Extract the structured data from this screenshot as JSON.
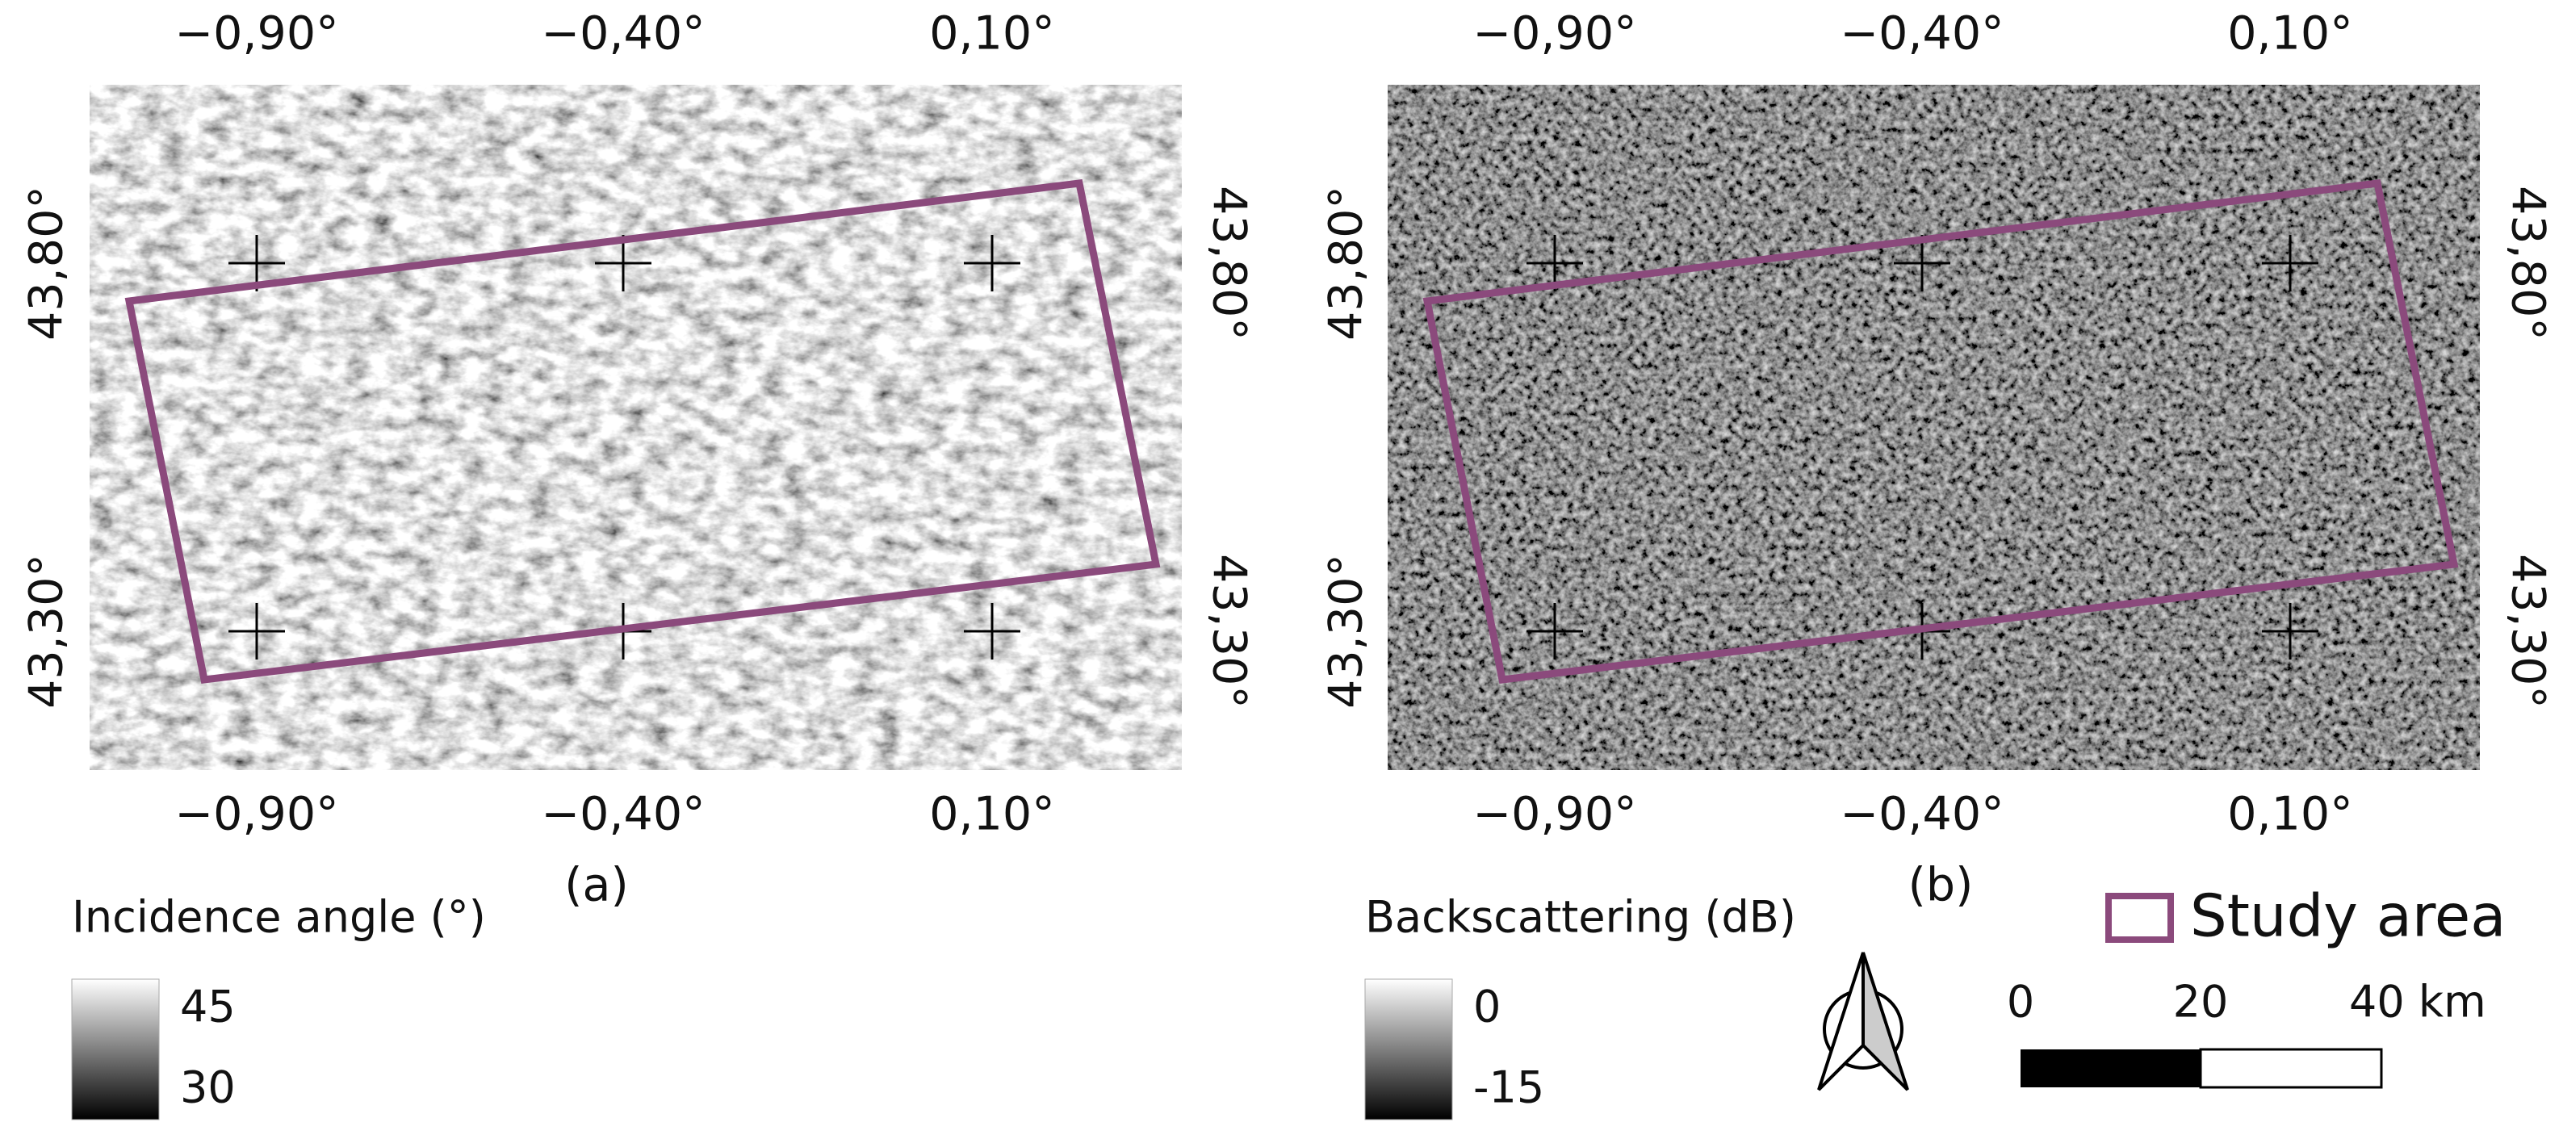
{
  "panels": [
    {
      "caption": "(a)",
      "lon_top": [
        "−0,90°",
        "−0,40°",
        "0,10°"
      ],
      "lon_bottom": [
        "−0,90°",
        "−0,40°",
        "0,10°"
      ],
      "lat_left": [
        "43,80°",
        "43,30°"
      ],
      "lat_right": [
        "43,80°",
        "43,30°"
      ],
      "legend": {
        "title": "Incidence angle (°)",
        "max": "45",
        "min": "30"
      }
    },
    {
      "caption": "(b)",
      "lon_top": [
        "−0,90°",
        "−0,40°",
        "0,10°"
      ],
      "lon_bottom": [
        "−0,90°",
        "−0,40°",
        "0,10°"
      ],
      "lat_left": [
        "43,80°",
        "43,30°"
      ],
      "lat_right": [
        "43,80°",
        "43,30°"
      ],
      "legend": {
        "title": "Backscattering (dB)",
        "max": "0",
        "min": "-15"
      }
    }
  ],
  "study_area_legend": "Study area",
  "scale_bar": {
    "labels": [
      "0",
      "20",
      "40 km"
    ]
  }
}
